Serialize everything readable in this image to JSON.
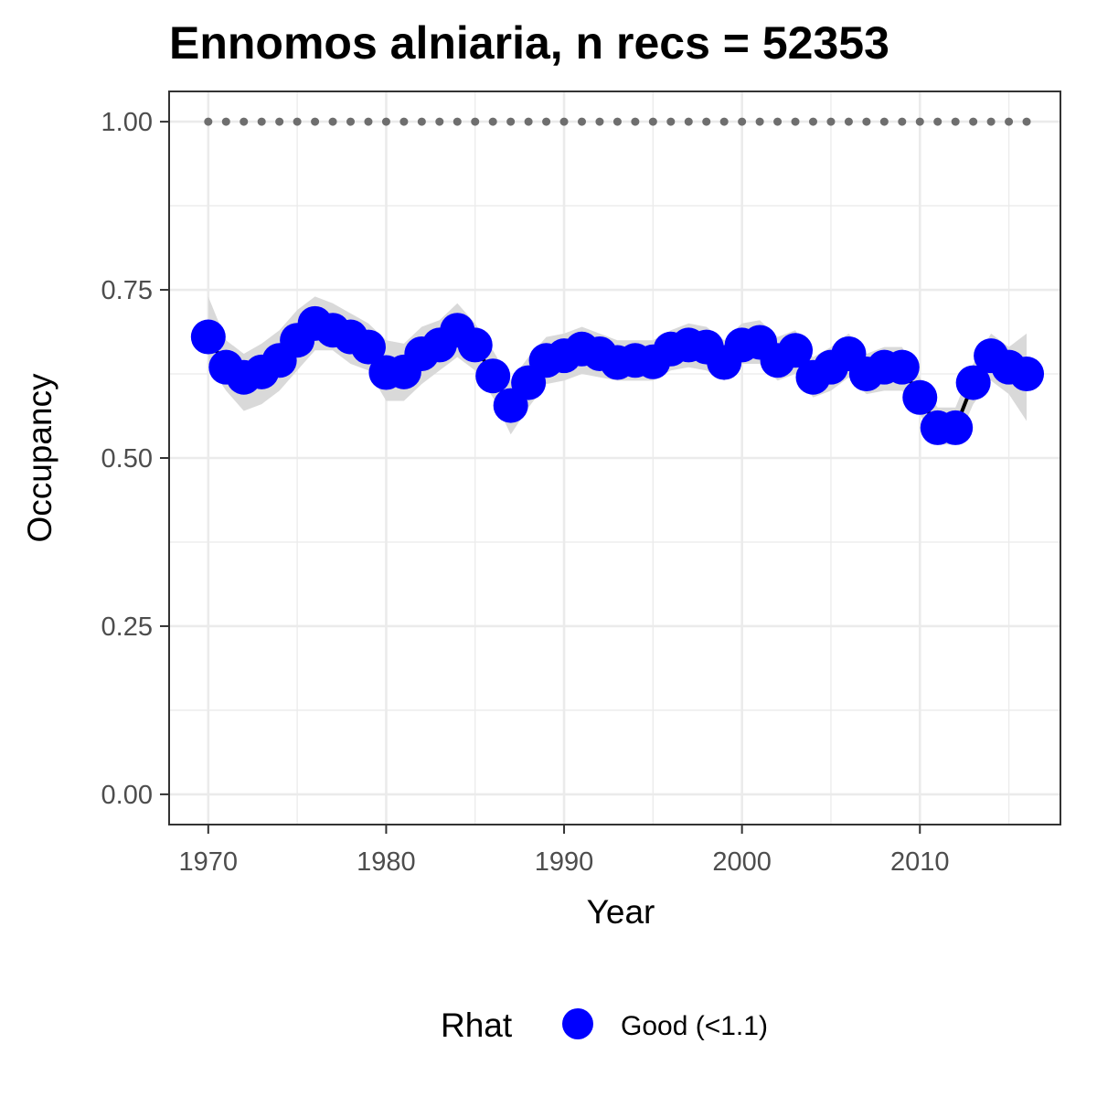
{
  "chart_data": {
    "type": "line",
    "title": "Ennomos alniaria, n recs = 52353",
    "xlabel": "Year",
    "ylabel": "Occupancy",
    "xlim": [
      1967.8,
      2017.9
    ],
    "ylim": [
      -0.045,
      1.045
    ],
    "x_ticks": [
      1970,
      1980,
      1990,
      2000,
      2010
    ],
    "x_tick_labels": [
      "1970",
      "1980",
      "1990",
      "2000",
      "2010"
    ],
    "y_ticks": [
      0,
      0.25,
      0.5,
      0.75,
      1.0
    ],
    "y_tick_labels": [
      "0.00",
      "0.25",
      "0.50",
      "0.75",
      "1.00"
    ],
    "grid": true,
    "legend_position": "bottom",
    "colors": {
      "points": "#0000ff",
      "line": "#000000",
      "ribbon": "#d9d9d9",
      "reference": "#6e6e6e",
      "grid": "#ebebeb",
      "panel_border": "#333333"
    },
    "legend": {
      "title": "Rhat",
      "entries": [
        {
          "label": "Good (<1.1)",
          "color": "#0000ff"
        }
      ]
    },
    "x": [
      1970,
      1971,
      1972,
      1973,
      1974,
      1975,
      1976,
      1977,
      1978,
      1979,
      1980,
      1981,
      1982,
      1983,
      1984,
      1985,
      1986,
      1987,
      1988,
      1989,
      1990,
      1991,
      1992,
      1993,
      1994,
      1995,
      1996,
      1997,
      1998,
      1999,
      2000,
      2001,
      2002,
      2003,
      2004,
      2005,
      2006,
      2007,
      2008,
      2009,
      2010,
      2011,
      2012,
      2013,
      2014,
      2015,
      2016
    ],
    "series": [
      {
        "name": "Good (<1.1)",
        "values": [
          0.68,
          0.635,
          0.62,
          0.628,
          0.645,
          0.675,
          0.7,
          0.69,
          0.68,
          0.665,
          0.627,
          0.628,
          0.655,
          0.668,
          0.69,
          0.668,
          0.622,
          0.578,
          0.612,
          0.645,
          0.652,
          0.662,
          0.655,
          0.642,
          0.645,
          0.643,
          0.662,
          0.668,
          0.665,
          0.642,
          0.668,
          0.672,
          0.645,
          0.66,
          0.62,
          0.635,
          0.655,
          0.625,
          0.635,
          0.635,
          0.59,
          0.545,
          0.545,
          0.612,
          0.652,
          0.635,
          0.625
        ],
        "lower": [
          0.64,
          0.6,
          0.57,
          0.58,
          0.6,
          0.63,
          0.66,
          0.66,
          0.64,
          0.63,
          0.585,
          0.585,
          0.61,
          0.63,
          0.65,
          0.63,
          0.59,
          0.535,
          0.575,
          0.61,
          0.615,
          0.625,
          0.62,
          0.615,
          0.615,
          0.615,
          0.63,
          0.635,
          0.63,
          0.615,
          0.64,
          0.64,
          0.615,
          0.625,
          0.59,
          0.6,
          0.62,
          0.595,
          0.6,
          0.6,
          0.565,
          0.52,
          0.52,
          0.58,
          0.615,
          0.595,
          0.555
        ],
        "upper": [
          0.74,
          0.675,
          0.655,
          0.67,
          0.69,
          0.72,
          0.74,
          0.73,
          0.715,
          0.7,
          0.675,
          0.67,
          0.695,
          0.705,
          0.73,
          0.7,
          0.66,
          0.615,
          0.65,
          0.68,
          0.685,
          0.695,
          0.685,
          0.675,
          0.675,
          0.675,
          0.69,
          0.7,
          0.695,
          0.675,
          0.7,
          0.705,
          0.68,
          0.69,
          0.65,
          0.665,
          0.685,
          0.655,
          0.665,
          0.665,
          0.62,
          0.575,
          0.575,
          0.64,
          0.685,
          0.665,
          0.685
        ]
      }
    ],
    "reference_line": {
      "y": 1.0,
      "x_start": 1970,
      "x_end": 2016,
      "style": "dotted"
    }
  }
}
